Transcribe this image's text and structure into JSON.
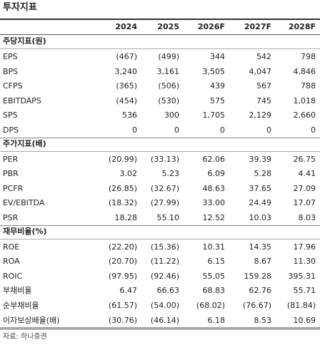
{
  "title": "투자지표",
  "columns": [
    "2024",
    "2025",
    "2026F",
    "2027F",
    "2028F"
  ],
  "sections": [
    {
      "title": "주당지표(원)",
      "rows": [
        {
          "label": "EPS",
          "values": [
            "(467)",
            "(499)",
            "344",
            "542",
            "798"
          ]
        },
        {
          "label": "BPS",
          "values": [
            "3,240",
            "3,161",
            "3,505",
            "4,047",
            "4,846"
          ]
        },
        {
          "label": "CFPS",
          "values": [
            "(365)",
            "(506)",
            "439",
            "567",
            "788"
          ]
        },
        {
          "label": "EBITDAPS",
          "values": [
            "(454)",
            "(530)",
            "575",
            "745",
            "1,018"
          ]
        },
        {
          "label": "SPS",
          "values": [
            "536",
            "300",
            "1,705",
            "2,129",
            "2,660"
          ]
        },
        {
          "label": "DPS",
          "values": [
            "0",
            "0",
            "0",
            "0",
            "0"
          ]
        }
      ]
    },
    {
      "title": "주가지표(배)",
      "rows": [
        {
          "label": "PER",
          "values": [
            "(20.99)",
            "(33.13)",
            "62.06",
            "39.39",
            "26.75"
          ]
        },
        {
          "label": "PBR",
          "values": [
            "3.02",
            "5.23",
            "6.09",
            "5.28",
            "4.41"
          ]
        },
        {
          "label": "PCFR",
          "values": [
            "(26.85)",
            "(32.67)",
            "48.63",
            "37.65",
            "27.09"
          ]
        },
        {
          "label": "EV/EBITDA",
          "values": [
            "(18.32)",
            "(27.99)",
            "33.00",
            "24.49",
            "17.07"
          ]
        },
        {
          "label": "PSR",
          "values": [
            "18.28",
            "55.10",
            "12.52",
            "10.03",
            "8.03"
          ]
        }
      ]
    },
    {
      "title": "재무비율(%)",
      "rows": [
        {
          "label": "ROE",
          "values": [
            "(22.20)",
            "(15.36)",
            "10.31",
            "14.35",
            "17.96"
          ]
        },
        {
          "label": "ROA",
          "values": [
            "(20.70)",
            "(11.22)",
            "6.15",
            "8.67",
            "11.30"
          ]
        },
        {
          "label": "ROIC",
          "values": [
            "(97.95)",
            "(92.46)",
            "55.05",
            "159.28",
            "395.31"
          ]
        },
        {
          "label": "부채비율",
          "values": [
            "6.47",
            "66.63",
            "68.83",
            "62.76",
            "55.71"
          ]
        },
        {
          "label": "순부채비율",
          "values": [
            "(61.57)",
            "(54.00)",
            "(68.02)",
            "(76.67)",
            "(81.84)"
          ]
        },
        {
          "label": "이자보상배율(배)",
          "values": [
            "(30.76)",
            "(46.14)",
            "6.18",
            "8.53",
            "10.69"
          ]
        }
      ]
    }
  ],
  "source": "자료: 하나증권"
}
